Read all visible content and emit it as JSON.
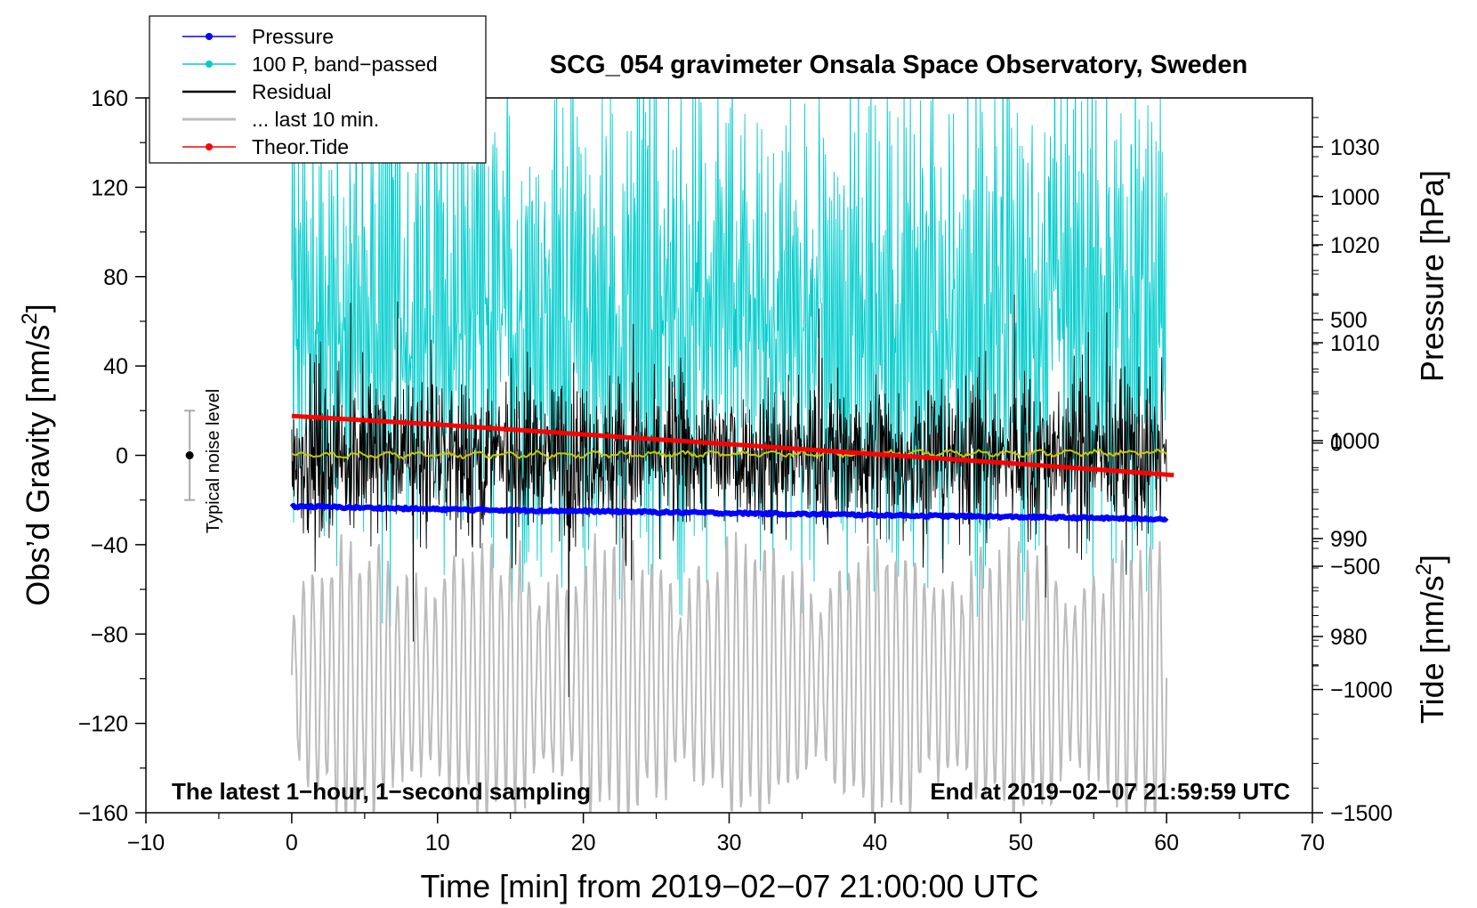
{
  "chart_data": {
    "type": "line",
    "title": "SCG_054 gravimeter Onsala Space Observatory, Sweden",
    "xlabel": "Time [min] from 2019−02−07 21:00:00 UTC",
    "ylabel_left_prefix": "Obs’d Gravity [nm/s",
    "ylabel_left_sup": "2",
    "ylabel_left_suffix": "]",
    "ylabel_pressure": "Pressure [hPa]",
    "ylabel_tide_prefix": "Tide [nm/s",
    "ylabel_tide_sup": "2",
    "ylabel_tide_suffix": "]",
    "xlim": [
      -10,
      70
    ],
    "ylim_left": [
      -160,
      160
    ],
    "ylim_pressure": [
      1035,
      962
    ],
    "ylim_tide": [
      -1500,
      1400
    ],
    "x_ticks": [
      "−10",
      "0",
      "10",
      "20",
      "30",
      "40",
      "50",
      "60",
      "70"
    ],
    "y_left_ticks": [
      "160",
      "120",
      "80",
      "40",
      "0",
      "−40",
      "−80",
      "−120",
      "−160"
    ],
    "pressure_ticks": [
      "1030",
      "1020",
      "1010",
      "1000",
      "990",
      "980"
    ],
    "tide_ticks": [
      "1000",
      "500",
      "0",
      "−500",
      "−1000",
      "−1500"
    ],
    "legend": [
      {
        "name": "Pressure",
        "color": "#0000ff",
        "marker": true
      },
      {
        "name": "100 P, band−passed",
        "color": "#00cccc",
        "marker": true
      },
      {
        "name": "Residual",
        "color": "#000000",
        "marker": false
      },
      {
        "name": "... last 10 min.",
        "color": "#bbbbbb",
        "marker": false
      },
      {
        "name": "Theor.Tide",
        "color": "#ff0000",
        "marker": true
      }
    ],
    "legend_position": "top-left",
    "noise_label": "Typical noise level",
    "noise_bar": {
      "x": -7,
      "center": 0,
      "half_range": 20
    },
    "annotation_left": "The latest 1−hour, 1−second sampling",
    "annotation_right": "End at 2019−02−07 21:59:59 UTC",
    "series": [
      {
        "name": "Pressure",
        "axis": "pressure",
        "x": [
          0,
          10,
          20,
          30,
          40,
          50,
          60
        ],
        "values": [
          993.3,
          993.0,
          992.8,
          992.6,
          992.4,
          992.2,
          992.0
        ]
      },
      {
        "name": "Theor.Tide",
        "axis": "tide",
        "x": [
          0,
          10,
          20,
          30,
          40,
          50,
          60.5
        ],
        "values": [
          110,
          75,
          35,
          -5,
          -45,
          -85,
          -130
        ]
      },
      {
        "name": "100 P, band−passed",
        "axis": "left",
        "x_range": [
          0,
          60
        ],
        "center": 60,
        "amplitude": 100
      },
      {
        "name": "Residual",
        "axis": "left",
        "x_range": [
          0,
          60
        ],
        "center": 0,
        "amplitude": 30
      },
      {
        "name": "... last 10 min.",
        "axis": "left",
        "x_range": [
          0,
          60
        ],
        "center": -100,
        "amplitude": 50
      },
      {
        "name": "Smoothed residual",
        "axis": "left",
        "x_range": [
          0,
          60
        ],
        "center": 0,
        "amplitude": 1.5
      }
    ]
  },
  "colors": {
    "pressure": "#0000ff",
    "bandpassed": "#00cccc",
    "residual": "#000000",
    "last10": "#bbbbbb",
    "tide": "#ff0000",
    "smoothed": "#c8c800"
  }
}
